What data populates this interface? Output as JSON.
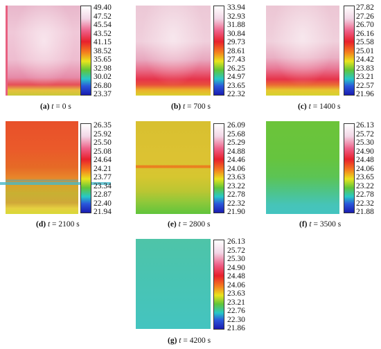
{
  "panels": [
    {
      "label": "(a)",
      "time": "0 s",
      "ticks": [
        "49.40",
        "47.52",
        "45.54",
        "43.52",
        "41.15",
        "38.52",
        "35.65",
        "32.98",
        "30.02",
        "26.80",
        "23.37"
      ]
    },
    {
      "label": "(b)",
      "time": "700 s",
      "ticks": [
        "33.94",
        "32.93",
        "31.88",
        "30.84",
        "29.73",
        "28.61",
        "27.43",
        "26.25",
        "24.97",
        "23.65",
        "22.32"
      ]
    },
    {
      "label": "(c)",
      "time": "1400 s",
      "ticks": [
        "27.82",
        "27.26",
        "26.70",
        "26.16",
        "25.58",
        "25.01",
        "24.42",
        "23.83",
        "23.21",
        "22.57",
        "21.96"
      ]
    },
    {
      "label": "(d)",
      "time": "2100 s",
      "ticks": [
        "26.35",
        "25.92",
        "25.50",
        "25.08",
        "24.64",
        "24.21",
        "23.77",
        "23.34",
        "22.87",
        "22.40",
        "21.94"
      ]
    },
    {
      "label": "(e)",
      "time": "2800 s",
      "ticks": [
        "26.09",
        "25.68",
        "25.29",
        "24.88",
        "24.46",
        "24.06",
        "23.63",
        "23.22",
        "22.78",
        "22.32",
        "21.90"
      ]
    },
    {
      "label": "(f)",
      "time": "3500 s",
      "ticks": [
        "26.13",
        "25.72",
        "25.30",
        "24.90",
        "24.48",
        "24.06",
        "23.65",
        "23.22",
        "22.78",
        "22.32",
        "21.88"
      ]
    },
    {
      "label": "(g)",
      "time": "4200 s",
      "ticks": [
        "26.13",
        "25.72",
        "25.30",
        "24.90",
        "24.48",
        "24.06",
        "23.63",
        "23.21",
        "22.76",
        "22.30",
        "21.86"
      ]
    }
  ],
  "time_symbol": "t"
}
